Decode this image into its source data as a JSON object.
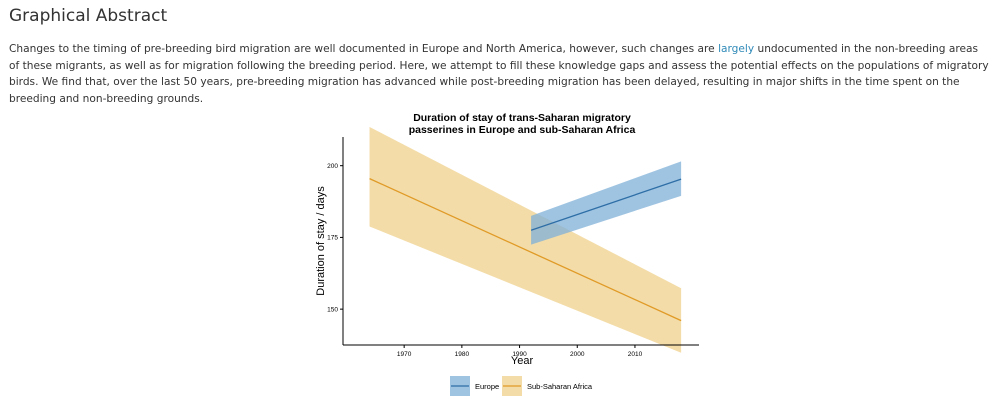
{
  "heading": "Graphical Abstract",
  "abstract": {
    "text_before": "Changes to the timing of pre-breeding bird migration are well documented in Europe and North America, however, such changes are ",
    "link_text": "largely",
    "text_after": " undocumented in the non-breeding areas of these migrants, as well as for migration following the breeding period. Here, we attempt to fill these knowledge gaps and assess the potential effects on the populations of migratory birds. We find that, over the last 50 years, pre-breeding migration has advanced while post-breeding migration has been delayed, resulting in major shifts in the time spent on the breeding and non-breeding grounds."
  },
  "chart_data": {
    "type": "line",
    "title_line1": "Duration of stay of trans-Saharan migratory",
    "title_line2": "passerines in Europe and sub-Saharan Africa",
    "xlabel": "Year",
    "ylabel": "Duration of stay / days",
    "xlim": [
      1959.4,
      2021.1
    ],
    "ylim": [
      137.5,
      210
    ],
    "xticks": [
      1970,
      1980,
      1990,
      2000,
      2010
    ],
    "yticks": [
      150,
      175,
      200
    ],
    "grid": false,
    "legend_position": "bottom",
    "series": [
      {
        "name": "Europe",
        "color": "#2e6ea6",
        "band_color": "#7fb0d8",
        "x": [
          1992,
          2018
        ],
        "y": [
          177.5,
          195.3
        ],
        "lower": [
          172.5,
          189.5
        ],
        "upper": [
          182.5,
          201.5
        ]
      },
      {
        "name": "Sub-Saharan Africa",
        "color": "#e09a26",
        "band_color": "#efd08a",
        "x": [
          1964,
          2018
        ],
        "y": [
          195.5,
          146.0
        ],
        "lower": [
          178.8,
          134.8
        ],
        "upper": [
          213.5,
          157.3
        ]
      }
    ]
  }
}
